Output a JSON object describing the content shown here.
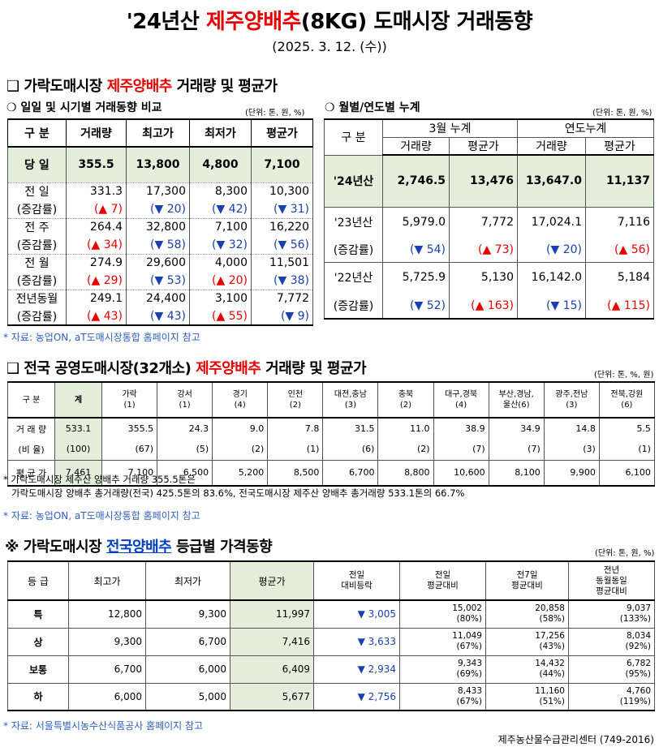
{
  "title": {
    "prefix": "'24년산 ",
    "highlight": "제주양배추",
    "suffix": "(8KG) 도매시장 거래동향"
  },
  "date": "(2025. 3. 12. (수))",
  "s1": {
    "marker": "❑",
    "pre": "가락도매시장 ",
    "hl": "제주양배추",
    "post": " 거래량 및 평균가"
  },
  "daily": {
    "title": "❍ 일일 및 시기별 거래동향 비교",
    "unit": "(단위: 톤, 원, %)",
    "headers": [
      "구  분",
      "거래량",
      "최고가",
      "최저가",
      "평균가"
    ],
    "today": {
      "label": "당  일",
      "vals": [
        "355.5",
        "13,800",
        "4,800",
        "7,100"
      ]
    },
    "rows": [
      {
        "label": "전  일",
        "vals": [
          "331.3",
          "17,300",
          "8,300",
          "10,300"
        ],
        "chg": [
          "(▲ 7)",
          "(▼ 20)",
          "(▼ 42)",
          "(▼ 31)"
        ],
        "dir": [
          "up",
          "dn",
          "dn",
          "dn"
        ]
      },
      {
        "label": "전  주",
        "vals": [
          "264.4",
          "32,800",
          "7,100",
          "16,220"
        ],
        "chg": [
          "(▲ 34)",
          "(▼ 58)",
          "(▼ 32)",
          "(▼ 56)"
        ],
        "dir": [
          "up",
          "dn",
          "dn",
          "dn"
        ]
      },
      {
        "label": "전  월",
        "vals": [
          "274.9",
          "29,600",
          "4,000",
          "11,501"
        ],
        "chg": [
          "(▲ 29)",
          "(▼ 53)",
          "(▲ 20)",
          "(▼ 38)"
        ],
        "dir": [
          "up",
          "dn",
          "up",
          "dn"
        ]
      },
      {
        "label": "전년동월",
        "vals": [
          "249.1",
          "24,400",
          "3,100",
          "7,772"
        ],
        "chg": [
          "(▲ 43)",
          "(▼ 43)",
          "(▲ 55)",
          "(▼ 9)"
        ],
        "dir": [
          "up",
          "dn",
          "up",
          "dn"
        ]
      }
    ],
    "chg_label": "(증감률)"
  },
  "monthly": {
    "title": "❍ 월별/연도별 누계",
    "unit": "(단위: 톤, 원, %)",
    "h_label": "구  분",
    "h_month": "3월 누계",
    "h_year": "연도누계",
    "h_sub": [
      "거래량",
      "평균가",
      "거래량",
      "평균가"
    ],
    "cur": {
      "label": "'24년산",
      "vals": [
        "2,746.5",
        "13,476",
        "13,647.0",
        "11,137"
      ]
    },
    "rows": [
      {
        "label": "'23년산",
        "vals": [
          "5,979.0",
          "7,772",
          "17,024.1",
          "7,116"
        ],
        "chg": [
          "(▼ 54)",
          "(▲ 73)",
          "(▼ 20)",
          "(▲ 56)"
        ],
        "dir": [
          "dn",
          "up",
          "dn",
          "up"
        ]
      },
      {
        "label": "'22년산",
        "vals": [
          "5,725.9",
          "5,130",
          "16,142.0",
          "5,184"
        ],
        "chg": [
          "(▼ 52)",
          "(▲ 163)",
          "(▼ 15)",
          "(▲ 115)"
        ],
        "dir": [
          "dn",
          "up",
          "dn",
          "up"
        ]
      }
    ],
    "chg_label": "(증감률)"
  },
  "note1": "* 자료: 농업ON, aT도매시장통합 홈페이지 참고",
  "s2": {
    "marker": "❑",
    "pre": "전국 공영도매시장(32개소) ",
    "hl": "제주양배추",
    "post": " 거래량 및 평균가",
    "unit": "(단위: 톤, %, 원)"
  },
  "nation": {
    "headers": [
      [
        "구  분",
        ""
      ],
      [
        "계",
        ""
      ],
      [
        "가락",
        "(1)"
      ],
      [
        "강서",
        "(1)"
      ],
      [
        "경기",
        "(4)"
      ],
      [
        "인천",
        "(2)"
      ],
      [
        "대전,충남",
        "(3)"
      ],
      [
        "충북",
        "(2)"
      ],
      [
        "대구,경북",
        "(4)"
      ],
      [
        "부산,경남,",
        "울산(6)"
      ],
      [
        "광주,전남",
        "(3)"
      ],
      [
        "전북,강원",
        "(6)"
      ]
    ],
    "vol_label": "거 래 량",
    "vol": [
      "533.1",
      "355.5",
      "24.3",
      "9.0",
      "7.8",
      "31.5",
      "11.0",
      "38.9",
      "34.9",
      "14.8",
      "5.5"
    ],
    "ratio_label": "(비  율)",
    "ratio": [
      "(100)",
      "(67)",
      "(5)",
      "(2)",
      "(1)",
      "(6)",
      "(2)",
      "(7)",
      "(7)",
      "(3)",
      "(1)"
    ],
    "avg_label": "평 균 가",
    "avg": [
      "7,461",
      "7,100",
      "6,500",
      "5,200",
      "8,500",
      "6,700",
      "8,800",
      "10,600",
      "8,100",
      "9,900",
      "6,100"
    ]
  },
  "note2a": "* 가락도매시장 제주산 양배추 거래량 355.5톤은",
  "note2b": "가락도매시장 양배추 총거래량(전국) 425.5톤의 83.6%, 전국도매시장 제주산 양배추 총거래량 533.1톤의 66.7%",
  "note2c": "* 자료: 농업ON, aT도매시장통합 홈페이지 참고",
  "s3": {
    "marker": "※",
    "pre": "가락도매시장 ",
    "hl": "전국양배추",
    "post": " 등급별 가격동향",
    "unit": "(단위: 톤, 원, %)"
  },
  "grade": {
    "headers": [
      "등  급",
      "최고가",
      "최저가",
      "평균가",
      "전일\n대비등락",
      "전일\n평균대비",
      "전7일\n평균대비",
      "전년\n동월동일\n평균대비"
    ],
    "rows": [
      {
        "g": "특",
        "max": "12,800",
        "min": "9,300",
        "avg": "11,997",
        "diff": "▼ 3,005",
        "d1": "15,002",
        "p1": "(80%)",
        "d7": "20,858",
        "p7": "(58%)",
        "dy": "9,037",
        "py": "(133%)"
      },
      {
        "g": "상",
        "max": "9,300",
        "min": "6,700",
        "avg": "7,416",
        "diff": "▼ 3,633",
        "d1": "11,049",
        "p1": "(67%)",
        "d7": "17,256",
        "p7": "(43%)",
        "dy": "8,034",
        "py": "(92%)"
      },
      {
        "g": "보통",
        "max": "6,700",
        "min": "6,000",
        "avg": "6,409",
        "diff": "▼ 2,934",
        "d1": "9,343",
        "p1": "(69%)",
        "d7": "14,432",
        "p7": "(44%)",
        "dy": "6,782",
        "py": "(95%)"
      },
      {
        "g": "하",
        "max": "6,000",
        "min": "5,000",
        "avg": "5,677",
        "diff": "▼ 2,756",
        "d1": "8,433",
        "p1": "(67%)",
        "d7": "11,160",
        "p7": "(51%)",
        "dy": "4,760",
        "py": "(119%)"
      }
    ]
  },
  "note3": "* 자료: 서울특별시농수산식품공사 홈페이지 참고",
  "footer": "제주농산물수급관리센터 (749-2016)",
  "colors": {
    "highlight": "#e60000",
    "blue_highlight": "#0040c0",
    "down": "#1a3fb0",
    "up": "#e60000",
    "green_cell": "#e3efdb"
  }
}
